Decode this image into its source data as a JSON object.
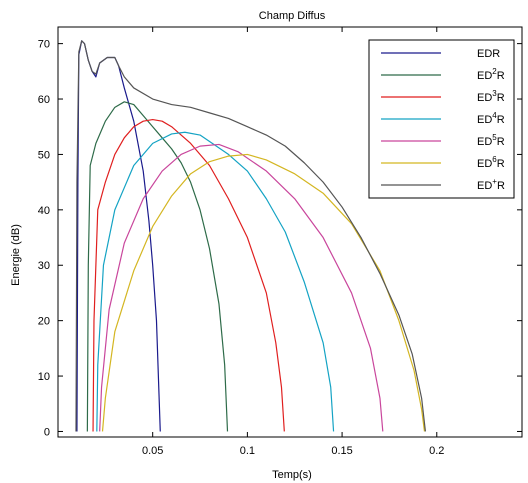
{
  "chart_data": {
    "type": "line",
    "title": "Champ Diffus",
    "xlabel": "Temp(s)",
    "ylabel": "Energie (dB)",
    "xlim": [
      0.0,
      0.245
    ],
    "ylim": [
      -1,
      73
    ],
    "xticks": [
      0.05,
      0.1,
      0.15,
      0.2
    ],
    "xtick_labels": [
      "0.05",
      "0.1",
      "0.15",
      "0.2"
    ],
    "yticks": [
      0,
      10,
      20,
      30,
      40,
      50,
      60,
      70
    ],
    "ytick_labels": [
      "0",
      "10",
      "20",
      "30",
      "40",
      "50",
      "60",
      "70"
    ],
    "grid": false,
    "legend_position": "top-right",
    "series": [
      {
        "name": "EDR",
        "base": "ED",
        "sup": "",
        "color": "#1a1a8c",
        "points": [
          [
            0.01,
            0
          ],
          [
            0.0105,
            45
          ],
          [
            0.011,
            68
          ],
          [
            0.0125,
            70.5
          ],
          [
            0.014,
            70
          ],
          [
            0.016,
            67
          ],
          [
            0.018,
            65
          ],
          [
            0.02,
            64
          ],
          [
            0.022,
            66.5
          ],
          [
            0.026,
            67.5
          ],
          [
            0.03,
            67.5
          ],
          [
            0.032,
            66
          ],
          [
            0.035,
            62
          ],
          [
            0.04,
            56
          ],
          [
            0.045,
            47
          ],
          [
            0.048,
            38
          ],
          [
            0.05,
            30
          ],
          [
            0.052,
            20
          ],
          [
            0.0535,
            5
          ],
          [
            0.054,
            0
          ]
        ]
      },
      {
        "name": "ED²R",
        "base": "ED",
        "sup": "2",
        "color": "#2e6b49",
        "points": [
          [
            0.0155,
            0
          ],
          [
            0.016,
            30
          ],
          [
            0.017,
            48
          ],
          [
            0.02,
            52
          ],
          [
            0.025,
            56
          ],
          [
            0.03,
            58.5
          ],
          [
            0.035,
            59.5
          ],
          [
            0.04,
            59
          ],
          [
            0.045,
            57
          ],
          [
            0.05,
            55
          ],
          [
            0.055,
            53
          ],
          [
            0.06,
            51
          ],
          [
            0.065,
            48.5
          ],
          [
            0.07,
            45
          ],
          [
            0.075,
            40
          ],
          [
            0.08,
            33
          ],
          [
            0.085,
            23
          ],
          [
            0.088,
            12
          ],
          [
            0.0895,
            0
          ]
        ]
      },
      {
        "name": "ED³R",
        "base": "ED",
        "sup": "3",
        "color": "#e01f1f",
        "points": [
          [
            0.0185,
            0
          ],
          [
            0.019,
            20
          ],
          [
            0.021,
            40
          ],
          [
            0.025,
            45
          ],
          [
            0.03,
            50
          ],
          [
            0.035,
            53
          ],
          [
            0.04,
            55
          ],
          [
            0.045,
            56
          ],
          [
            0.05,
            56.3
          ],
          [
            0.055,
            56
          ],
          [
            0.06,
            55
          ],
          [
            0.07,
            52
          ],
          [
            0.08,
            48
          ],
          [
            0.09,
            42
          ],
          [
            0.1,
            35
          ],
          [
            0.11,
            25
          ],
          [
            0.115,
            16
          ],
          [
            0.118,
            8
          ],
          [
            0.1195,
            0
          ]
        ]
      },
      {
        "name": "ED⁴R",
        "base": "ED",
        "sup": "4",
        "color": "#14a3c4",
        "points": [
          [
            0.0205,
            0
          ],
          [
            0.021,
            12
          ],
          [
            0.024,
            30
          ],
          [
            0.03,
            40
          ],
          [
            0.04,
            48
          ],
          [
            0.05,
            52
          ],
          [
            0.06,
            53.7
          ],
          [
            0.067,
            54
          ],
          [
            0.075,
            53.5
          ],
          [
            0.09,
            50
          ],
          [
            0.1,
            47
          ],
          [
            0.11,
            42
          ],
          [
            0.12,
            36
          ],
          [
            0.13,
            27
          ],
          [
            0.14,
            16
          ],
          [
            0.144,
            8
          ],
          [
            0.1455,
            0
          ]
        ]
      },
      {
        "name": "ED⁵R",
        "base": "ED",
        "sup": "5",
        "color": "#c9469c",
        "points": [
          [
            0.022,
            0
          ],
          [
            0.023,
            8
          ],
          [
            0.027,
            22
          ],
          [
            0.035,
            34
          ],
          [
            0.045,
            42
          ],
          [
            0.055,
            47
          ],
          [
            0.065,
            50
          ],
          [
            0.075,
            51.5
          ],
          [
            0.085,
            51.8
          ],
          [
            0.095,
            50.5
          ],
          [
            0.11,
            47
          ],
          [
            0.125,
            42
          ],
          [
            0.14,
            35
          ],
          [
            0.155,
            25
          ],
          [
            0.165,
            15
          ],
          [
            0.17,
            6
          ],
          [
            0.1715,
            0
          ]
        ]
      },
      {
        "name": "ED⁶R",
        "base": "ED",
        "sup": "6",
        "color": "#d4b622",
        "points": [
          [
            0.0235,
            0
          ],
          [
            0.025,
            6
          ],
          [
            0.03,
            18
          ],
          [
            0.04,
            29
          ],
          [
            0.05,
            37
          ],
          [
            0.06,
            42.5
          ],
          [
            0.07,
            46.5
          ],
          [
            0.08,
            48.7
          ],
          [
            0.09,
            49.7
          ],
          [
            0.1,
            50
          ],
          [
            0.11,
            49
          ],
          [
            0.125,
            46.5
          ],
          [
            0.14,
            43
          ],
          [
            0.155,
            37.5
          ],
          [
            0.17,
            29
          ],
          [
            0.18,
            20
          ],
          [
            0.188,
            11
          ],
          [
            0.192,
            4
          ],
          [
            0.1935,
            0
          ]
        ]
      },
      {
        "name": "ED⁺R",
        "base": "ED",
        "sup": "+",
        "color": "#555555",
        "points": [
          [
            0.0095,
            0
          ],
          [
            0.01,
            45
          ],
          [
            0.011,
            68.5
          ],
          [
            0.0125,
            70.5
          ],
          [
            0.014,
            70
          ],
          [
            0.016,
            67
          ],
          [
            0.018,
            65
          ],
          [
            0.02,
            64.5
          ],
          [
            0.022,
            66.5
          ],
          [
            0.026,
            67.5
          ],
          [
            0.03,
            67.5
          ],
          [
            0.032,
            66
          ],
          [
            0.035,
            64
          ],
          [
            0.04,
            62
          ],
          [
            0.05,
            60
          ],
          [
            0.06,
            59
          ],
          [
            0.07,
            58.5
          ],
          [
            0.08,
            57.5
          ],
          [
            0.09,
            56.5
          ],
          [
            0.1,
            55
          ],
          [
            0.11,
            53.5
          ],
          [
            0.12,
            51.5
          ],
          [
            0.13,
            48.5
          ],
          [
            0.14,
            45
          ],
          [
            0.15,
            40.5
          ],
          [
            0.16,
            35
          ],
          [
            0.17,
            28.5
          ],
          [
            0.18,
            21
          ],
          [
            0.187,
            14
          ],
          [
            0.192,
            6
          ],
          [
            0.194,
            0
          ]
        ]
      }
    ]
  }
}
